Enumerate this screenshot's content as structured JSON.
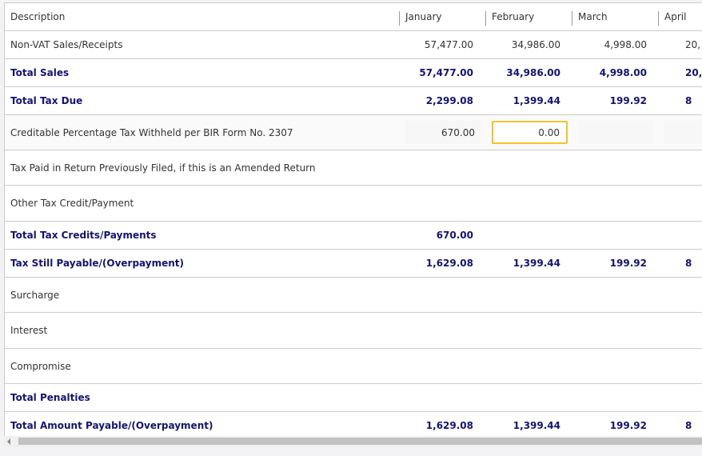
{
  "table": {
    "header": [
      "Description",
      "January",
      "February",
      "March",
      "April"
    ],
    "rows": [
      {
        "bold": false,
        "cells": [
          "Non-VAT Sales/Receipts",
          "57,477.00",
          "34,986.00",
          "4,998.00",
          "20,"
        ]
      },
      {
        "bold": true,
        "cells": [
          "Total Sales",
          "57,477.00",
          "34,986.00",
          "4,998.00",
          "20,"
        ]
      },
      {
        "bold": true,
        "cells": [
          "Total Tax Due",
          "2,299.08",
          "1,399.44",
          "199.92",
          "8"
        ]
      },
      {
        "bold": false,
        "inputs": true,
        "cells": [
          "Creditable Percentage Tax Withheld per BIR Form No. 2307",
          "670.00",
          "0.00",
          null,
          null
        ]
      },
      {
        "bold": false,
        "cells": [
          "Tax Paid in Return Previously Filed, if this is an Amended Return",
          null,
          null,
          null,
          null
        ]
      },
      {
        "bold": false,
        "cells": [
          "Other Tax Credit/Payment",
          null,
          null,
          null,
          null
        ]
      },
      {
        "bold": true,
        "cells": [
          "Total Tax Credits/Payments",
          "670.00",
          null,
          null,
          null
        ]
      },
      {
        "bold": true,
        "cells": [
          "Tax Still Payable/(Overpayment)",
          "1,629.08",
          "1,399.44",
          "199.92",
          "8"
        ]
      },
      {
        "bold": false,
        "cells": [
          "Surcharge",
          null,
          null,
          null,
          null
        ]
      },
      {
        "bold": false,
        "cells": [
          "Interest",
          null,
          null,
          null,
          null
        ]
      },
      {
        "bold": false,
        "cells": [
          "Compromise",
          null,
          null,
          null,
          null
        ]
      },
      {
        "bold": true,
        "cells": [
          "Total Penalties",
          null,
          null,
          null,
          null
        ]
      },
      {
        "bold": true,
        "cells": [
          "Total Amount Payable/(Overpayment)",
          "1,629.08",
          "1,399.44",
          "199.92",
          "8"
        ]
      }
    ]
  }
}
